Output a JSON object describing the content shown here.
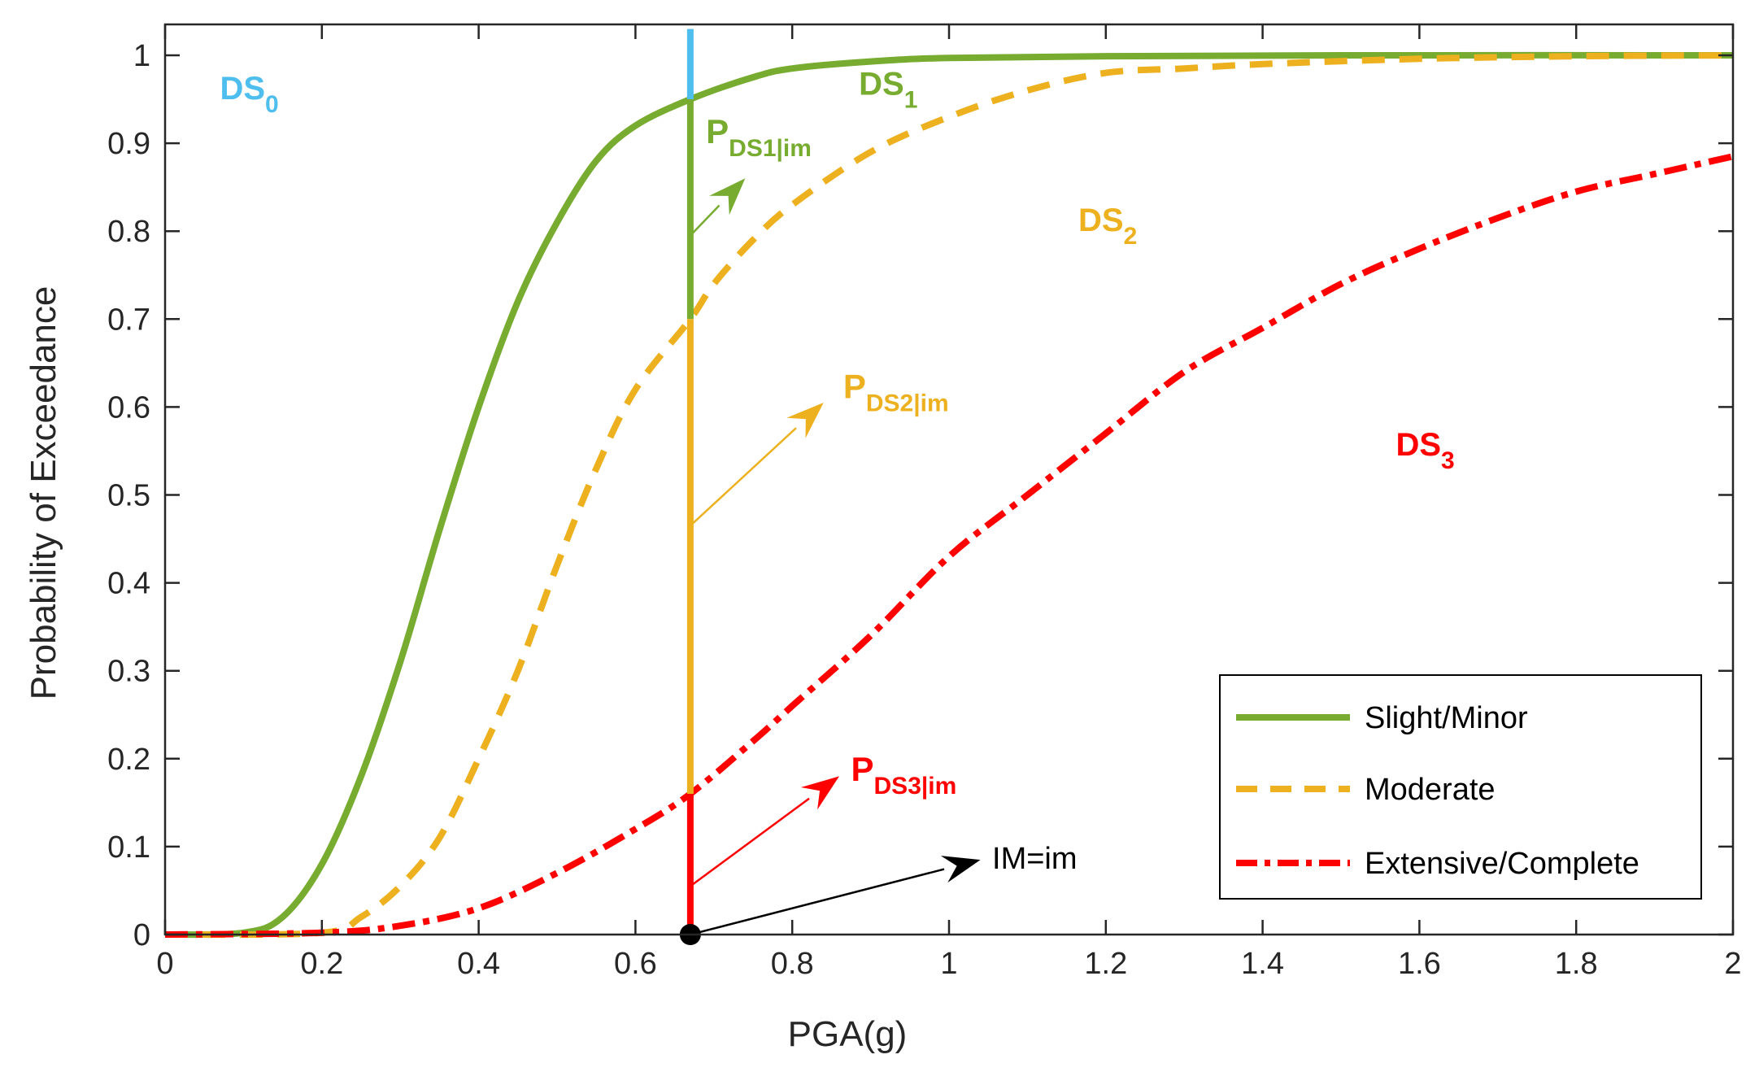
{
  "chart_data": {
    "type": "line",
    "title": "",
    "xlabel": "PGA(g)",
    "ylabel": "Probability of Exceedance",
    "xlim": [
      0,
      2
    ],
    "ylim": [
      0,
      1.0
    ],
    "xticks": [
      0,
      0.2,
      0.4,
      0.6,
      0.8,
      1,
      1.2,
      1.4,
      1.6,
      1.8,
      2
    ],
    "xtick_labels": [
      "0",
      "0.2",
      "0.4",
      "0.6",
      "0.8",
      "1",
      "1.2",
      "1.4",
      "1.6",
      "1.8",
      "2"
    ],
    "yticks": [
      0,
      0.1,
      0.2,
      0.3,
      0.4,
      0.5,
      0.6,
      0.7,
      0.8,
      0.9,
      1
    ],
    "ytick_labels": [
      "0",
      "0.1",
      "0.2",
      "0.3",
      "0.4",
      "0.5",
      "0.6",
      "0.7",
      "0.8",
      "0.9",
      "1"
    ],
    "grid": false,
    "series": [
      {
        "name": "Slight/Minor",
        "color": "#77AC30",
        "style": "solid",
        "x": [
          0,
          0.1,
          0.15,
          0.2,
          0.25,
          0.3,
          0.35,
          0.4,
          0.45,
          0.5,
          0.55,
          0.6,
          0.67,
          0.75,
          0.8,
          0.9,
          1.0,
          1.2,
          1.5,
          2.0
        ],
        "values": [
          0,
          0.002,
          0.02,
          0.08,
          0.18,
          0.31,
          0.46,
          0.6,
          0.72,
          0.81,
          0.88,
          0.92,
          0.95,
          0.975,
          0.985,
          0.993,
          0.997,
          0.999,
          1.0,
          1.0
        ]
      },
      {
        "name": "Moderate",
        "color": "#EDB120",
        "style": "dashed",
        "x": [
          0,
          0.2,
          0.25,
          0.3,
          0.35,
          0.4,
          0.45,
          0.5,
          0.55,
          0.6,
          0.67,
          0.7,
          0.75,
          0.8,
          0.9,
          1.0,
          1.1,
          1.2,
          1.3,
          1.4,
          1.6,
          1.8,
          2.0
        ],
        "values": [
          0,
          0.002,
          0.02,
          0.055,
          0.11,
          0.2,
          0.3,
          0.42,
          0.53,
          0.62,
          0.7,
          0.74,
          0.79,
          0.83,
          0.89,
          0.93,
          0.96,
          0.98,
          0.985,
          0.99,
          0.996,
          0.999,
          1.0
        ]
      },
      {
        "name": "Extensive/Complete",
        "color": "#FF0000",
        "style": "dashdot",
        "x": [
          0,
          0.2,
          0.3,
          0.4,
          0.5,
          0.6,
          0.67,
          0.75,
          0.8,
          0.9,
          1.0,
          1.1,
          1.2,
          1.3,
          1.4,
          1.5,
          1.6,
          1.7,
          1.8,
          1.9,
          2.0
        ],
        "values": [
          0,
          0.002,
          0.01,
          0.03,
          0.07,
          0.12,
          0.16,
          0.22,
          0.26,
          0.34,
          0.43,
          0.5,
          0.57,
          0.64,
          0.69,
          0.74,
          0.78,
          0.815,
          0.845,
          0.865,
          0.885
        ]
      }
    ],
    "im_value": 0.67,
    "vertical_segments": [
      {
        "name": "DS0 segment",
        "color": "#4DBEEE",
        "from": 0.95,
        "to": 1.03
      },
      {
        "name": "DS1 segment",
        "color": "#77AC30",
        "from": 0.7,
        "to": 0.95
      },
      {
        "name": "DS2 segment",
        "color": "#EDB120",
        "from": 0.16,
        "to": 0.7
      },
      {
        "name": "DS3 segment",
        "color": "#FF0000",
        "from": 0.0,
        "to": 0.16
      }
    ],
    "arrows": [
      {
        "name": "IM=im",
        "color": "#000000",
        "from": [
          0.67,
          0.0
        ],
        "to": [
          1.04,
          0.085
        ]
      },
      {
        "name": "P DS3|im",
        "color": "#FF0000",
        "from": [
          0.67,
          0.055
        ],
        "to": [
          0.86,
          0.18
        ]
      },
      {
        "name": "P DS2|im",
        "color": "#EDB120",
        "from": [
          0.67,
          0.465
        ],
        "to": [
          0.84,
          0.605
        ]
      },
      {
        "name": "P DS1|im",
        "color": "#77AC30",
        "from": [
          0.67,
          0.795
        ],
        "to": [
          0.74,
          0.86
        ]
      }
    ],
    "annotations": [
      {
        "main": "DS",
        "sub": "0",
        "color": "#4DBEEE",
        "x": 0.07,
        "y": 0.95
      },
      {
        "main": "DS",
        "sub": "1",
        "color": "#77AC30",
        "x": 0.885,
        "y": 0.955
      },
      {
        "main": "DS",
        "sub": "2",
        "color": "#EDB120",
        "x": 1.165,
        "y": 0.8
      },
      {
        "main": "DS",
        "sub": "3",
        "color": "#FF0000",
        "x": 1.57,
        "y": 0.545
      },
      {
        "main": "P",
        "sub": "DS1|im",
        "color": "#77AC30",
        "x": 0.69,
        "y": 0.9
      },
      {
        "main": "P",
        "sub": "DS2|im",
        "color": "#EDB120",
        "x": 0.865,
        "y": 0.61
      },
      {
        "main": "P",
        "sub": "DS3|im",
        "color": "#FF0000",
        "x": 0.875,
        "y": 0.175
      }
    ],
    "im_label": "IM=im",
    "legend": {
      "position": "bottom-right",
      "entries": [
        "Slight/Minor",
        "Moderate",
        "Extensive/Complete"
      ]
    }
  }
}
